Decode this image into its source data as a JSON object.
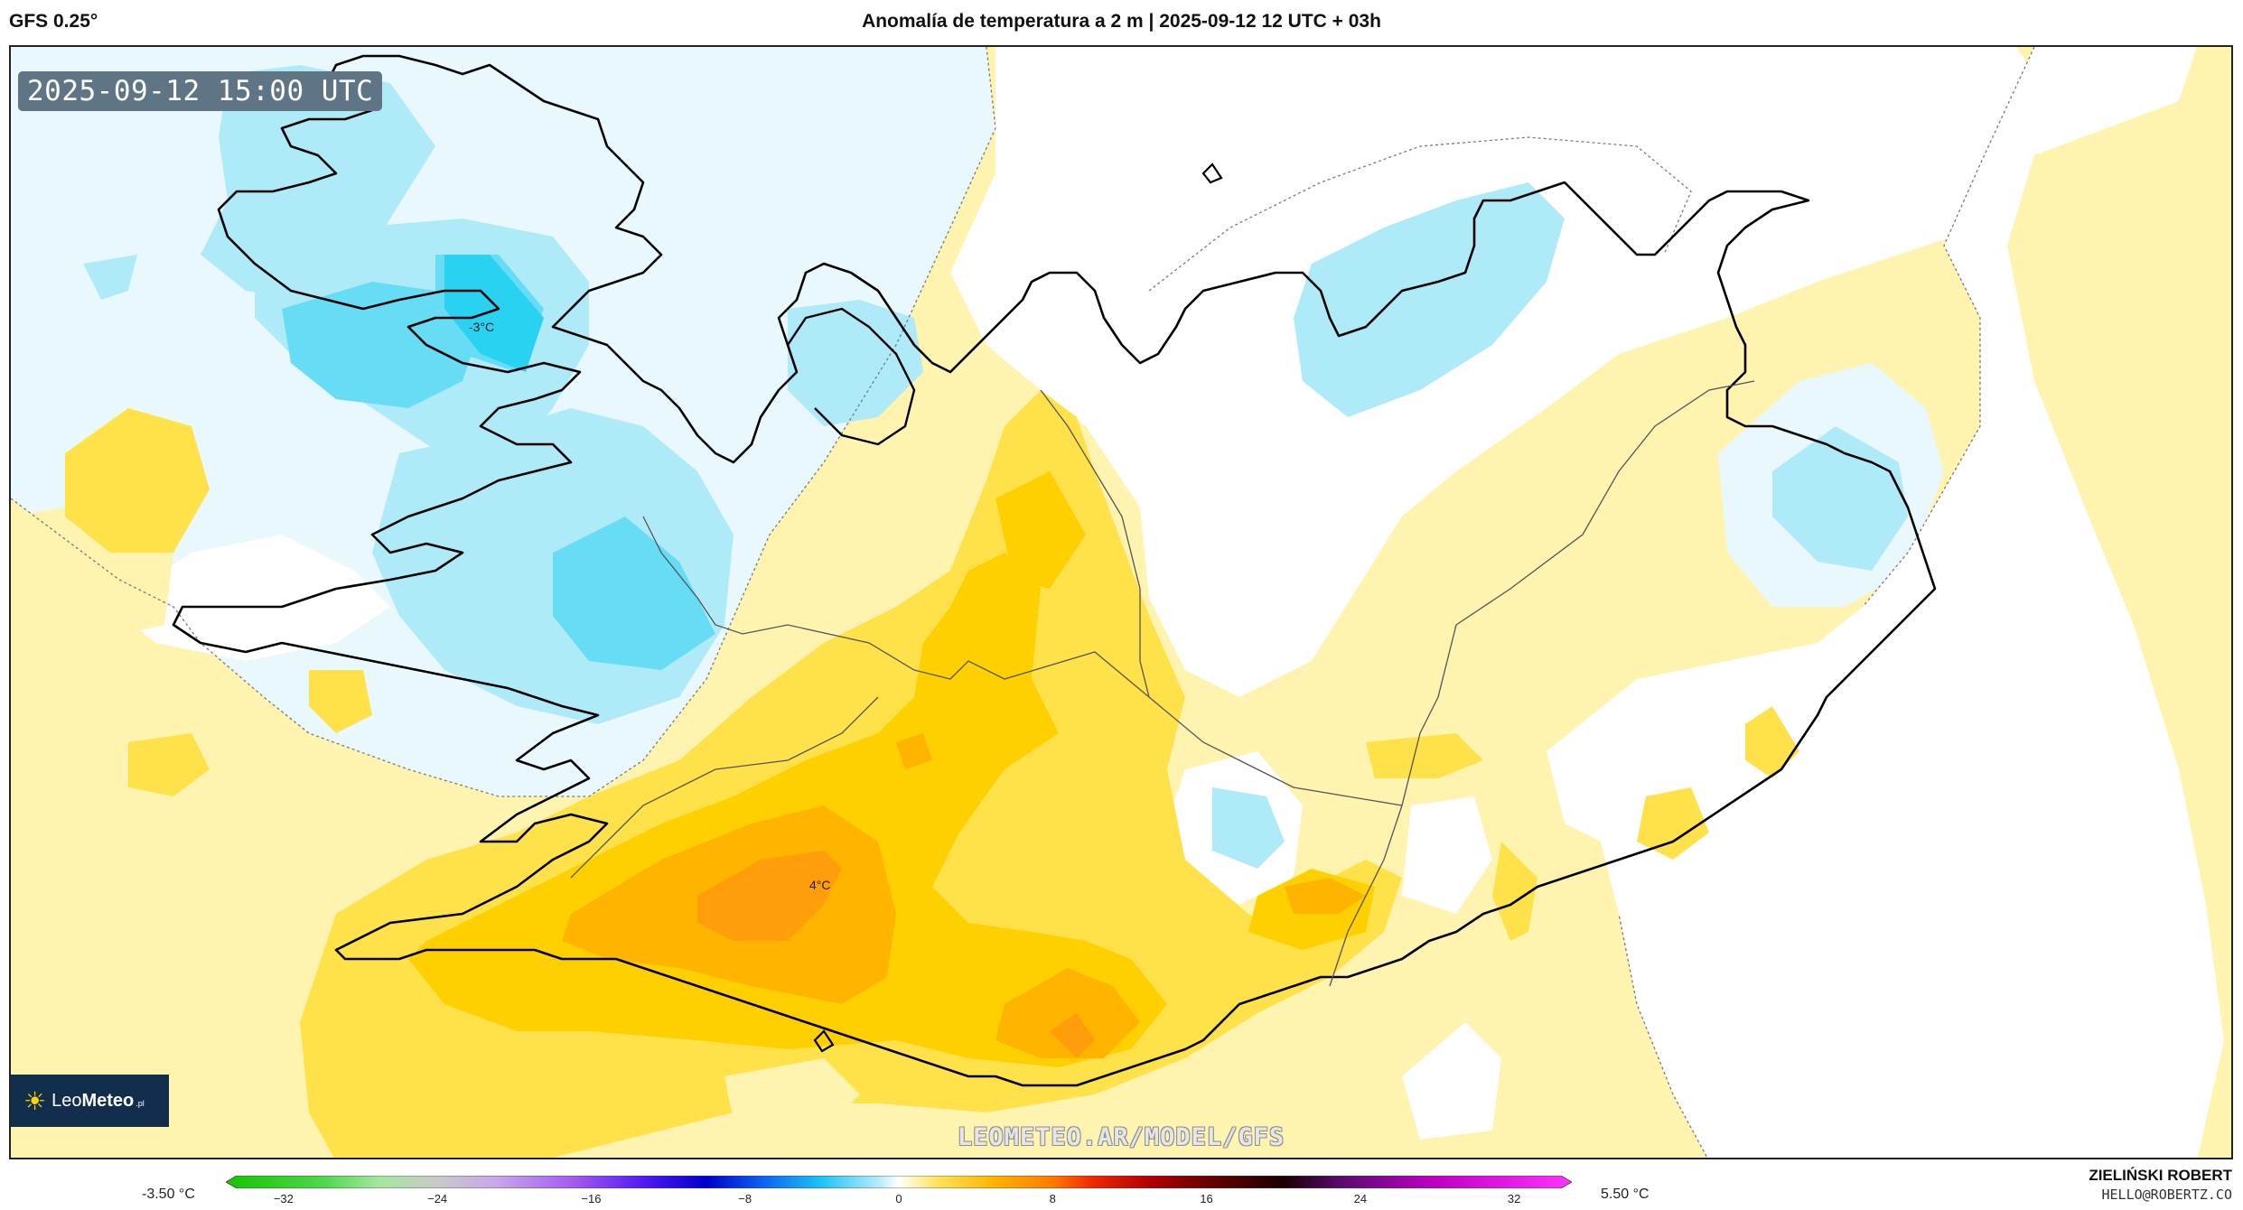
{
  "header": {
    "model": "GFS 0.25°",
    "title": "Anomalía de temperatura a 2 m | 2025-09-12 12 UTC + 03h"
  },
  "map": {
    "valid_time": "2025-09-12 15:00 UTC",
    "labels": [
      {
        "text": "-3°C"
      },
      {
        "text": "4°C"
      }
    ],
    "watermark": "LEOMETEO.AR/MODEL/GFS",
    "logo": {
      "brand_light": "Leo",
      "brand_bold": "Meteo",
      "suffix": ".pl"
    },
    "colors": {
      "cold_light": "#e9f8fd",
      "cold_mid": "#aeeaf8",
      "cold_strong": "#67dcf5",
      "cold_core": "#2ad2f2",
      "warm_light": "#fff3b0",
      "warm_mid": "#ffe14a",
      "warm_strong": "#ffd000",
      "warm_deep": "#ffb400",
      "warm_core": "#ff9e0a",
      "coast": "#000000"
    }
  },
  "legend": {
    "min_label": "-3.50 °C",
    "max_label": "5.50 °C",
    "ticks": [
      "−32",
      "−24",
      "−16",
      "−8",
      "0",
      "8",
      "16",
      "24",
      "32"
    ],
    "tick_values": [
      -32,
      -24,
      -16,
      -8,
      0,
      8,
      16,
      24,
      32
    ],
    "range": [
      -35,
      35
    ],
    "stops": [
      {
        "value": -35,
        "color": "#16c400"
      },
      {
        "value": -30,
        "color": "#4bd84a"
      },
      {
        "value": -27,
        "color": "#a6e6a0"
      },
      {
        "value": -24,
        "color": "#c9c9c9"
      },
      {
        "value": -21,
        "color": "#c8a8ea"
      },
      {
        "value": -17,
        "color": "#a55cf0"
      },
      {
        "value": -13,
        "color": "#4b16f2"
      },
      {
        "value": -10,
        "color": "#0000cc"
      },
      {
        "value": -7,
        "color": "#0a66f0"
      },
      {
        "value": -4,
        "color": "#1ec4f6"
      },
      {
        "value": -1,
        "color": "#b8ecfa"
      },
      {
        "value": 0,
        "color": "#ffffff"
      },
      {
        "value": 2,
        "color": "#ffe35a"
      },
      {
        "value": 5,
        "color": "#ffb300"
      },
      {
        "value": 8,
        "color": "#ff7a00"
      },
      {
        "value": 10,
        "color": "#f22a00"
      },
      {
        "value": 13,
        "color": "#b40000"
      },
      {
        "value": 16,
        "color": "#6a0000"
      },
      {
        "value": 20,
        "color": "#1a0000"
      },
      {
        "value": 23,
        "color": "#5a0a6e"
      },
      {
        "value": 28,
        "color": "#c000c8"
      },
      {
        "value": 35,
        "color": "#ff33ff"
      }
    ]
  },
  "credits": {
    "name": "ZIELIŃSKI ROBERT",
    "email": "HELLO@ROBERTZ.CO"
  }
}
